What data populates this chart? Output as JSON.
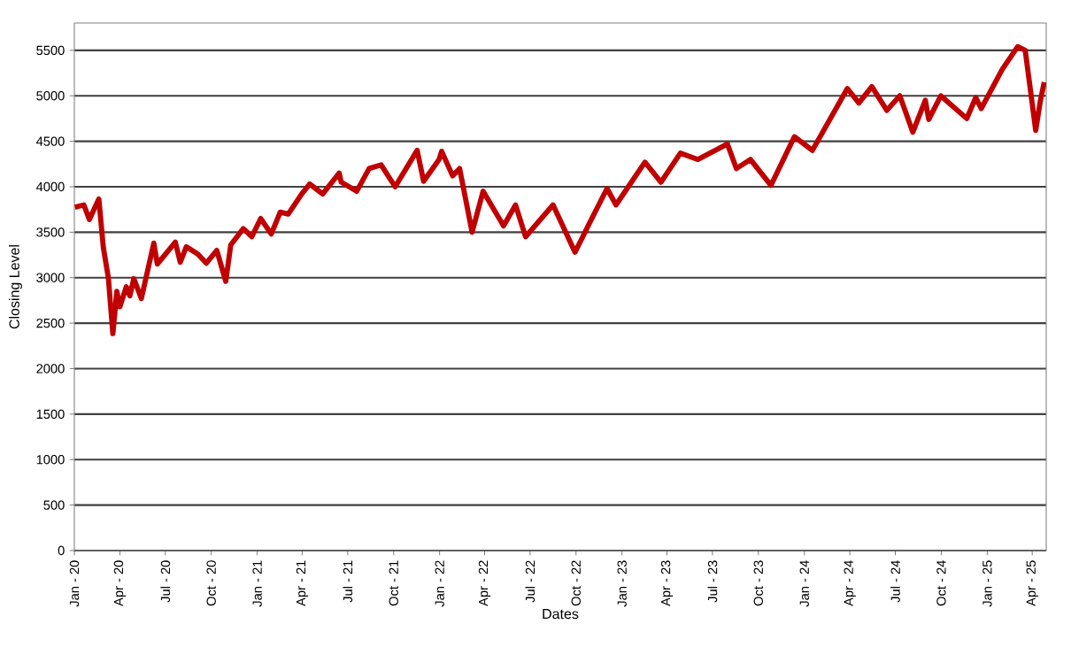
{
  "chart_data": {
    "type": "line",
    "xlabel": "Dates",
    "ylabel": "Closing Level",
    "color": "#c00000",
    "grid": "y",
    "xlim": [
      "2020-01-01",
      "2025-04-29"
    ],
    "ylim": [
      0,
      5800
    ],
    "yticks": [
      0,
      500,
      1000,
      1500,
      2000,
      2500,
      3000,
      3500,
      4000,
      4500,
      5000,
      5500
    ],
    "xticks": [
      {
        "value": "2020-01-01",
        "label": "Jan - 20"
      },
      {
        "value": "2020-04-01",
        "label": "Apr - 20"
      },
      {
        "value": "2020-07-01",
        "label": "Jul - 20"
      },
      {
        "value": "2020-10-01",
        "label": "Oct - 20"
      },
      {
        "value": "2021-01-01",
        "label": "Jan - 21"
      },
      {
        "value": "2021-04-01",
        "label": "Apr - 21"
      },
      {
        "value": "2021-07-01",
        "label": "Jul - 21"
      },
      {
        "value": "2021-10-01",
        "label": "Oct - 21"
      },
      {
        "value": "2022-01-01",
        "label": "Jan - 22"
      },
      {
        "value": "2022-04-01",
        "label": "Apr - 22"
      },
      {
        "value": "2022-07-01",
        "label": "Jul - 22"
      },
      {
        "value": "2022-10-01",
        "label": "Oct - 22"
      },
      {
        "value": "2023-01-01",
        "label": "Jan - 23"
      },
      {
        "value": "2023-04-01",
        "label": "Apr - 23"
      },
      {
        "value": "2023-07-01",
        "label": "Jul - 23"
      },
      {
        "value": "2023-10-01",
        "label": "Oct - 23"
      },
      {
        "value": "2024-01-01",
        "label": "Jan - 24"
      },
      {
        "value": "2024-04-01",
        "label": "Apr - 24"
      },
      {
        "value": "2024-07-01",
        "label": "Jul - 24"
      },
      {
        "value": "2024-10-01",
        "label": "Oct - 24"
      },
      {
        "value": "2025-01-01",
        "label": "Jan - 25"
      },
      {
        "value": "2025-04-01",
        "label": "Apr - 25"
      }
    ],
    "x": [
      "2020-01-02",
      "2020-01-20",
      "2020-01-31",
      "2020-02-19",
      "2020-02-28",
      "2020-03-09",
      "2020-03-18",
      "2020-03-26",
      "2020-04-01",
      "2020-04-14",
      "2020-04-21",
      "2020-04-29",
      "2020-05-14",
      "2020-06-08",
      "2020-06-15",
      "2020-07-21",
      "2020-07-31",
      "2020-08-12",
      "2020-09-04",
      "2020-09-21",
      "2020-10-12",
      "2020-10-30",
      "2020-11-09",
      "2020-12-04",
      "2020-12-21",
      "2021-01-08",
      "2021-01-29",
      "2021-02-16",
      "2021-03-04",
      "2021-03-31",
      "2021-04-16",
      "2021-05-12",
      "2021-06-14",
      "2021-06-18",
      "2021-07-19",
      "2021-08-13",
      "2021-09-06",
      "2021-10-04",
      "2021-11-17",
      "2021-11-30",
      "2021-12-31",
      "2022-01-05",
      "2022-01-27",
      "2022-02-10",
      "2022-03-07",
      "2022-03-29",
      "2022-05-09",
      "2022-06-02",
      "2022-06-22",
      "2022-08-16",
      "2022-09-29",
      "2022-10-28",
      "2022-12-02",
      "2022-12-20",
      "2023-02-16",
      "2023-03-20",
      "2023-04-28",
      "2023-06-02",
      "2023-07-31",
      "2023-08-18",
      "2023-09-15",
      "2023-10-26",
      "2023-12-12",
      "2024-01-17",
      "2024-03-27",
      "2024-04-19",
      "2024-05-15",
      "2024-06-14",
      "2024-07-10",
      "2024-08-05",
      "2024-08-30",
      "2024-09-06",
      "2024-09-30",
      "2024-11-21",
      "2024-12-09",
      "2024-12-20",
      "2025-01-31",
      "2025-03-03",
      "2025-03-18",
      "2025-04-08",
      "2025-04-17",
      "2025-04-25"
    ],
    "values": [
      3775,
      3800,
      3640,
      3865,
      3330,
      3000,
      2385,
      2850,
      2680,
      2900,
      2800,
      2990,
      2770,
      3380,
      3150,
      3390,
      3170,
      3340,
      3260,
      3160,
      3300,
      2960,
      3360,
      3540,
      3450,
      3650,
      3480,
      3720,
      3700,
      3920,
      4030,
      3920,
      4150,
      4050,
      3950,
      4200,
      4240,
      4000,
      4400,
      4060,
      4300,
      4390,
      4120,
      4200,
      3500,
      3950,
      3570,
      3800,
      3450,
      3800,
      3280,
      3600,
      3980,
      3800,
      4270,
      4050,
      4370,
      4300,
      4470,
      4200,
      4300,
      4015,
      4550,
      4400,
      5080,
      4920,
      5100,
      4840,
      5000,
      4600,
      4950,
      4740,
      5000,
      4750,
      4980,
      4860,
      5290,
      5540,
      5500,
      4620,
      4935,
      5150
    ]
  }
}
